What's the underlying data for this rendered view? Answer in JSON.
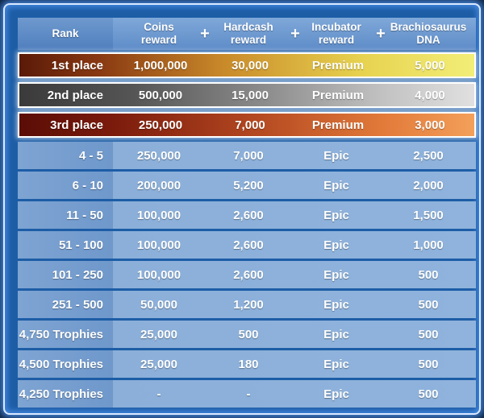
{
  "header": {
    "rank": "Rank",
    "coins": [
      "Coins",
      "reward"
    ],
    "hardcash": [
      "Hardcash",
      "reward"
    ],
    "incubator": [
      "Incubator",
      "reward"
    ],
    "dna": [
      "Brachiosaurus",
      "DNA"
    ],
    "plus": "+"
  },
  "rows": [
    {
      "rank": "1st place",
      "coins": "1,000,000",
      "hardcash": "30,000",
      "incubator": "Premium",
      "dna": "5,000"
    },
    {
      "rank": "2nd place",
      "coins": "500,000",
      "hardcash": "15,000",
      "incubator": "Premium",
      "dna": "4,000"
    },
    {
      "rank": "3rd place",
      "coins": "250,000",
      "hardcash": "7,000",
      "incubator": "Premium",
      "dna": "3,000"
    },
    {
      "rank": "4 - 5",
      "coins": "250,000",
      "hardcash": "7,000",
      "incubator": "Epic",
      "dna": "2,500"
    },
    {
      "rank": "6 - 10",
      "coins": "200,000",
      "hardcash": "5,200",
      "incubator": "Epic",
      "dna": "2,000"
    },
    {
      "rank": "11 - 50",
      "coins": "100,000",
      "hardcash": "2,600",
      "incubator": "Epic",
      "dna": "1,500"
    },
    {
      "rank": "51 - 100",
      "coins": "100,000",
      "hardcash": "2,600",
      "incubator": "Epic",
      "dna": "1,000"
    },
    {
      "rank": "101 - 250",
      "coins": "100,000",
      "hardcash": "2,600",
      "incubator": "Epic",
      "dna": "500"
    },
    {
      "rank": "251 - 500",
      "coins": "50,000",
      "hardcash": "1,200",
      "incubator": "Epic",
      "dna": "500"
    },
    {
      "rank": "4,750 Trophies",
      "coins": "25,000",
      "hardcash": "500",
      "incubator": "Epic",
      "dna": "500"
    },
    {
      "rank": "4,500 Trophies",
      "coins": "25,000",
      "hardcash": "180",
      "incubator": "Epic",
      "dna": "500"
    },
    {
      "rank": "4,250 Trophies",
      "coins": "-",
      "hardcash": "-",
      "incubator": "Epic",
      "dna": "500"
    }
  ]
}
